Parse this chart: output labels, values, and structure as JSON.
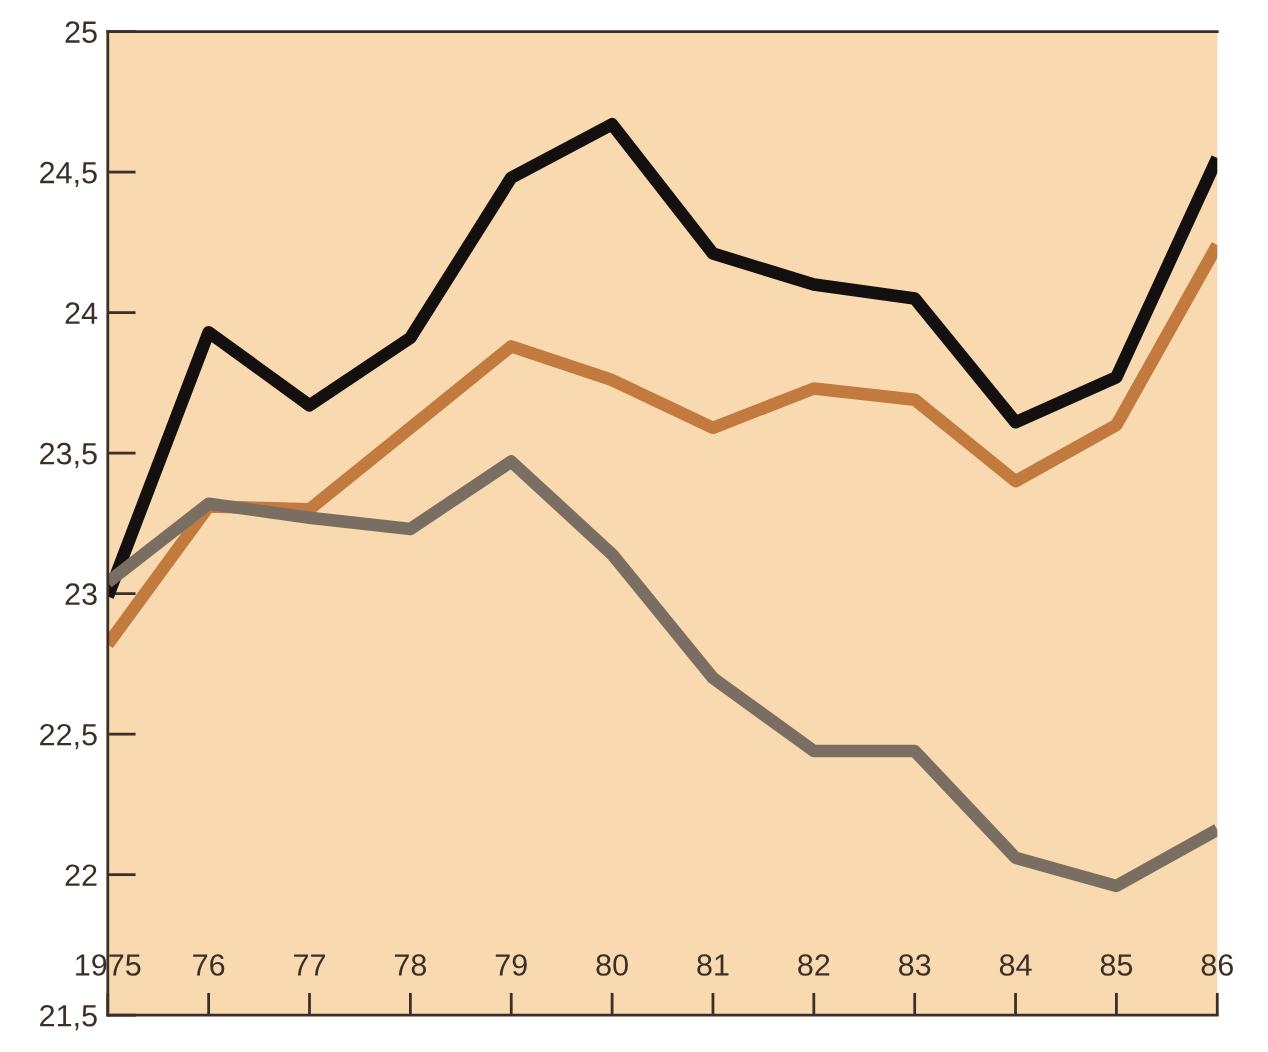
{
  "chart_data": {
    "type": "line",
    "x": [
      1975,
      1976,
      1977,
      1978,
      1979,
      1980,
      1981,
      1982,
      1983,
      1984,
      1985,
      1986
    ],
    "series": [
      {
        "color": "#141010",
        "values": [
          22.99,
          23.93,
          23.67,
          23.91,
          24.48,
          24.67,
          24.21,
          24.1,
          24.05,
          23.61,
          23.77,
          24.55
        ]
      },
      {
        "color": "#c27a3e",
        "values": [
          22.82,
          23.31,
          23.3,
          23.59,
          23.88,
          23.76,
          23.59,
          23.73,
          23.69,
          23.4,
          23.6,
          24.24
        ]
      },
      {
        "color": "#7a6e63",
        "values": [
          23.04,
          23.32,
          23.27,
          23.23,
          23.47,
          23.14,
          22.7,
          22.44,
          22.44,
          22.06,
          21.96,
          22.16
        ]
      }
    ],
    "xlim": [
      1975,
      1986
    ],
    "xticks": [
      {
        "value": 1975,
        "label": "1975"
      },
      {
        "value": 1976,
        "label": "76"
      },
      {
        "value": 1977,
        "label": "77"
      },
      {
        "value": 1978,
        "label": "78"
      },
      {
        "value": 1979,
        "label": "79"
      },
      {
        "value": 1980,
        "label": "80"
      },
      {
        "value": 1981,
        "label": "81"
      },
      {
        "value": 1982,
        "label": "82"
      },
      {
        "value": 1983,
        "label": "83"
      },
      {
        "value": 1984,
        "label": "84"
      },
      {
        "value": 1985,
        "label": "85"
      },
      {
        "value": 1986,
        "label": "86"
      }
    ],
    "ylim": [
      21.5,
      25
    ],
    "yticks": [
      {
        "value": 21.5,
        "label": "21,5"
      },
      {
        "value": 22,
        "label": "22"
      },
      {
        "value": 22.5,
        "label": "22,5"
      },
      {
        "value": 23,
        "label": "23"
      },
      {
        "value": 23.5,
        "label": "23,5"
      },
      {
        "value": 24,
        "label": "24"
      },
      {
        "value": 24.5,
        "label": "24,5"
      },
      {
        "value": 25,
        "label": "25"
      }
    ],
    "marker": "none",
    "line_style": "solid"
  }
}
